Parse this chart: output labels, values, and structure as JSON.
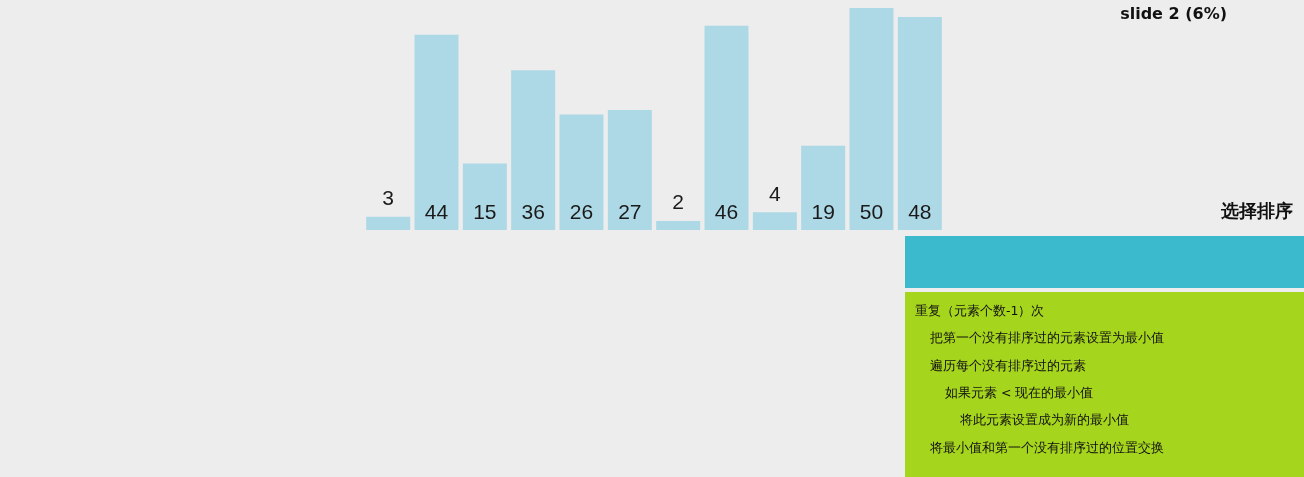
{
  "chart_data": {
    "type": "bar",
    "title": "选择排序",
    "subtitle": "slide 2 (6%)",
    "categories": [
      null,
      null,
      null,
      null,
      null,
      null,
      null,
      null,
      null,
      null,
      null,
      null
    ],
    "values": [
      3,
      44,
      15,
      36,
      26,
      27,
      2,
      46,
      4,
      19,
      50,
      48
    ],
    "color": "#add8e6",
    "data_labels": true,
    "annotations": [
      "重复（元素个数-1）次",
      "把第一个没有排序过的元素设置为最小值",
      "遍历每个没有排序过的元素",
      "如果元素 < 现在的最小值",
      "将此元素设置成为新的最小值",
      "将最小值和第一个没有排序过的位置交换"
    ]
  }
}
